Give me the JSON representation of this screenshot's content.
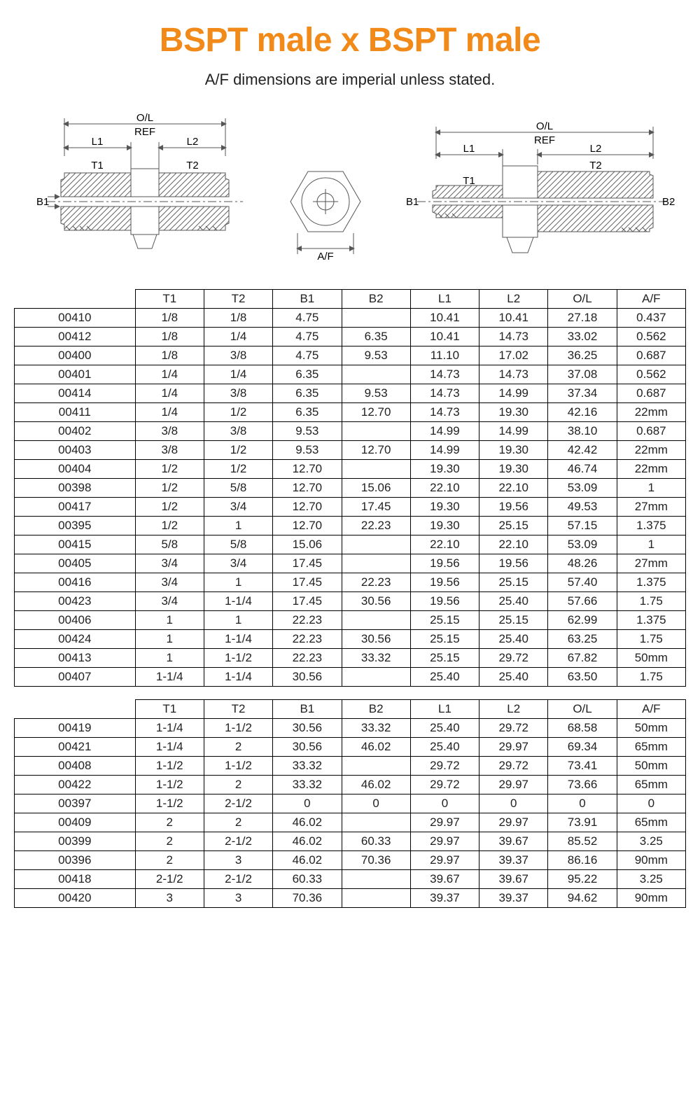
{
  "title": "BSPT male x BSPT male",
  "title_color": "#f28a1a",
  "subtitle": "A/F dimensions are imperial unless stated.",
  "diagram_labels": {
    "ol": "O/L",
    "ref": "REF",
    "L1": "L1",
    "L2": "L2",
    "T1": "T1",
    "T2": "T2",
    "B1": "B1",
    "B2": "B2",
    "AF": "A/F"
  },
  "columns": [
    "T1",
    "T2",
    "B1",
    "B2",
    "L1",
    "L2",
    "O/L",
    "A/F"
  ],
  "table1": [
    [
      "00410",
      "1/8",
      "1/8",
      "4.75",
      "",
      "10.41",
      "10.41",
      "27.18",
      "0.437"
    ],
    [
      "00412",
      "1/8",
      "1/4",
      "4.75",
      "6.35",
      "10.41",
      "14.73",
      "33.02",
      "0.562"
    ],
    [
      "00400",
      "1/8",
      "3/8",
      "4.75",
      "9.53",
      "11.10",
      "17.02",
      "36.25",
      "0.687"
    ],
    [
      "00401",
      "1/4",
      "1/4",
      "6.35",
      "",
      "14.73",
      "14.73",
      "37.08",
      "0.562"
    ],
    [
      "00414",
      "1/4",
      "3/8",
      "6.35",
      "9.53",
      "14.73",
      "14.99",
      "37.34",
      "0.687"
    ],
    [
      "00411",
      "1/4",
      "1/2",
      "6.35",
      "12.70",
      "14.73",
      "19.30",
      "42.16",
      "22mm"
    ],
    [
      "00402",
      "3/8",
      "3/8",
      "9.53",
      "",
      "14.99",
      "14.99",
      "38.10",
      "0.687"
    ],
    [
      "00403",
      "3/8",
      "1/2",
      "9.53",
      "12.70",
      "14.99",
      "19.30",
      "42.42",
      "22mm"
    ],
    [
      "00404",
      "1/2",
      "1/2",
      "12.70",
      "",
      "19.30",
      "19.30",
      "46.74",
      "22mm"
    ],
    [
      "00398",
      "1/2",
      "5/8",
      "12.70",
      "15.06",
      "22.10",
      "22.10",
      "53.09",
      "1"
    ],
    [
      "00417",
      "1/2",
      "3/4",
      "12.70",
      "17.45",
      "19.30",
      "19.56",
      "49.53",
      "27mm"
    ],
    [
      "00395",
      "1/2",
      "1",
      "12.70",
      "22.23",
      "19.30",
      "25.15",
      "57.15",
      "1.375"
    ],
    [
      "00415",
      "5/8",
      "5/8",
      "15.06",
      "",
      "22.10",
      "22.10",
      "53.09",
      "1"
    ],
    [
      "00405",
      "3/4",
      "3/4",
      "17.45",
      "",
      "19.56",
      "19.56",
      "48.26",
      "27mm"
    ],
    [
      "00416",
      "3/4",
      "1",
      "17.45",
      "22.23",
      "19.56",
      "25.15",
      "57.40",
      "1.375"
    ],
    [
      "00423",
      "3/4",
      "1-1/4",
      "17.45",
      "30.56",
      "19.56",
      "25.40",
      "57.66",
      "1.75"
    ],
    [
      "00406",
      "1",
      "1",
      "22.23",
      "",
      "25.15",
      "25.15",
      "62.99",
      "1.375"
    ],
    [
      "00424",
      "1",
      "1-1/4",
      "22.23",
      "30.56",
      "25.15",
      "25.40",
      "63.25",
      "1.75"
    ],
    [
      "00413",
      "1",
      "1-1/2",
      "22.23",
      "33.32",
      "25.15",
      "29.72",
      "67.82",
      "50mm"
    ],
    [
      "00407",
      "1-1/4",
      "1-1/4",
      "30.56",
      "",
      "25.40",
      "25.40",
      "63.50",
      "1.75"
    ]
  ],
  "table2": [
    [
      "00419",
      "1-1/4",
      "1-1/2",
      "30.56",
      "33.32",
      "25.40",
      "29.72",
      "68.58",
      "50mm"
    ],
    [
      "00421",
      "1-1/4",
      "2",
      "30.56",
      "46.02",
      "25.40",
      "29.97",
      "69.34",
      "65mm"
    ],
    [
      "00408",
      "1-1/2",
      "1-1/2",
      "33.32",
      "",
      "29.72",
      "29.72",
      "73.41",
      "50mm"
    ],
    [
      "00422",
      "1-1/2",
      "2",
      "33.32",
      "46.02",
      "29.72",
      "29.97",
      "73.66",
      "65mm"
    ],
    [
      "00397",
      "1-1/2",
      "2-1/2",
      "0",
      "0",
      "0",
      "0",
      "0",
      "0"
    ],
    [
      "00409",
      "2",
      "2",
      "46.02",
      "",
      "29.97",
      "29.97",
      "73.91",
      "65mm"
    ],
    [
      "00399",
      "2",
      "2-1/2",
      "46.02",
      "60.33",
      "29.97",
      "39.67",
      "85.52",
      "3.25"
    ],
    [
      "00396",
      "2",
      "3",
      "46.02",
      "70.36",
      "29.97",
      "39.37",
      "86.16",
      "90mm"
    ],
    [
      "00418",
      "2-1/2",
      "2-1/2",
      "60.33",
      "",
      "39.67",
      "39.67",
      "95.22",
      "3.25"
    ],
    [
      "00420",
      "3",
      "3",
      "70.36",
      "",
      "39.37",
      "39.37",
      "94.62",
      "90mm"
    ]
  ]
}
